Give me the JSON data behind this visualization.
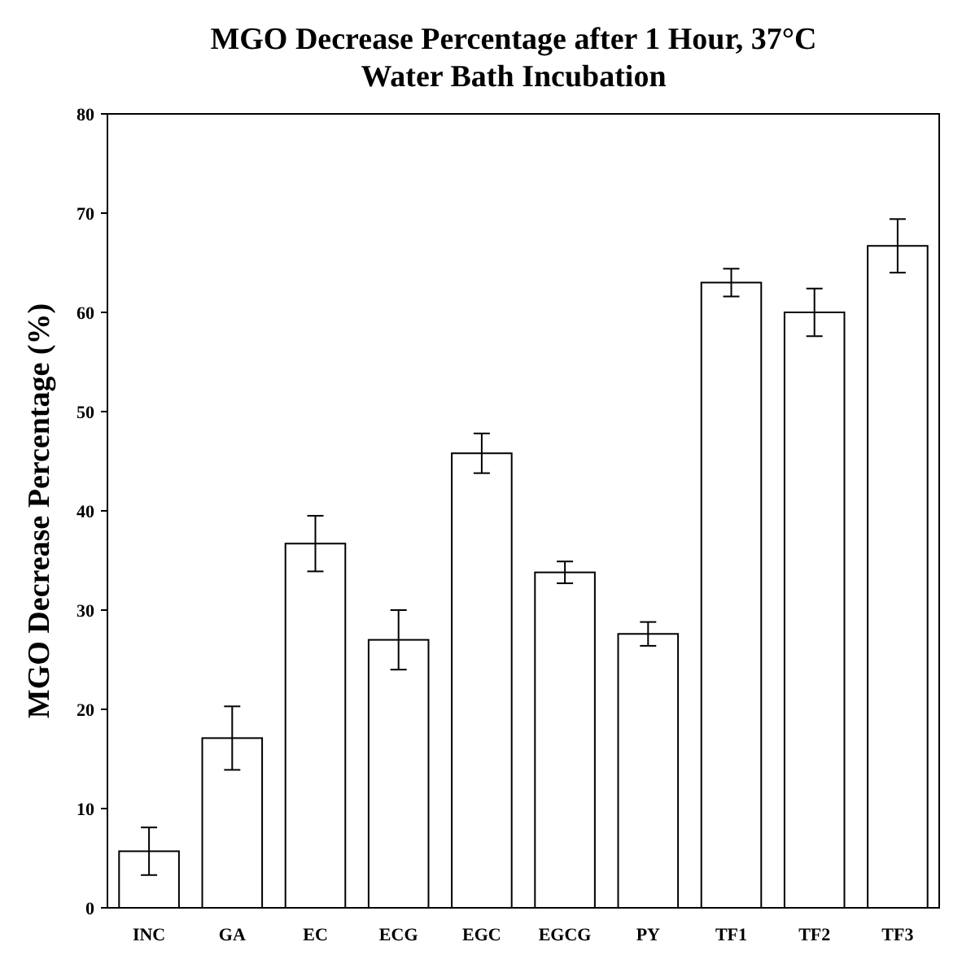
{
  "chart_data": {
    "type": "bar",
    "title": "MGO Decrease Percentage after 1 Hour, 37°C Water Bath Incubation",
    "ylabel": "MGO Decrease Percentage (%)",
    "categories": [
      "INC",
      "GA",
      "EC",
      "ECG",
      "EGC",
      "EGCG",
      "PY",
      "TF1",
      "TF2",
      "TF3"
    ],
    "values": [
      5.7,
      17.1,
      36.7,
      27.0,
      45.8,
      33.8,
      27.6,
      63.0,
      60.0,
      66.7
    ],
    "errors": [
      2.4,
      3.2,
      2.8,
      3.0,
      2.0,
      1.1,
      1.2,
      1.4,
      2.4,
      2.7
    ],
    "color": "#ffffff",
    "ylim": [
      0,
      80
    ],
    "yticks": [
      0,
      10,
      20,
      30,
      40,
      50,
      60,
      70,
      80
    ],
    "grid": false
  }
}
